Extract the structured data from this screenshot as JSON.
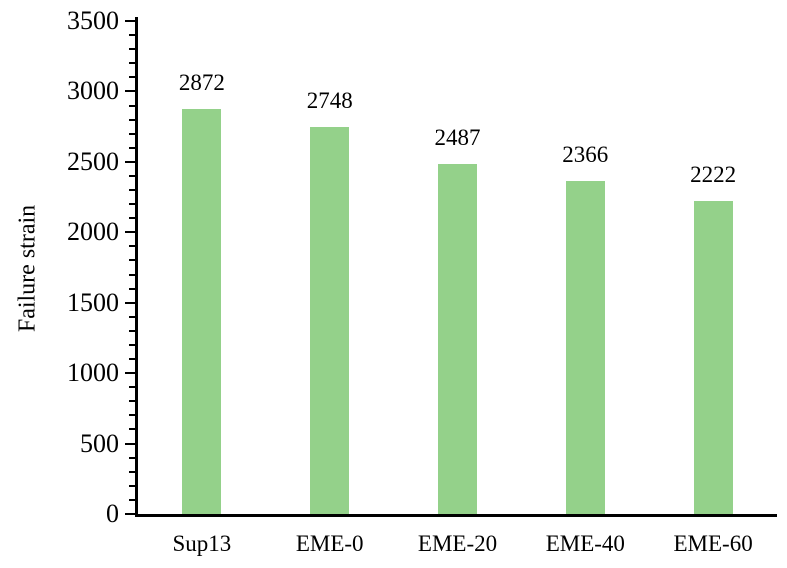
{
  "chart_data": {
    "type": "bar",
    "title": "",
    "xlabel": "",
    "ylabel": "Failure strain",
    "categories": [
      "Sup13",
      "EME-0",
      "EME-20",
      "EME-40",
      "EME-60"
    ],
    "values": [
      2872,
      2748,
      2487,
      2366,
      2222
    ],
    "value_labels": [
      "2872",
      "2748",
      "2487",
      "2366",
      "2222"
    ],
    "ylim": [
      0,
      3500
    ],
    "ytick_step": 500,
    "minor_tick_step": 100,
    "ytick_labels": [
      "0",
      "500",
      "1000",
      "1500",
      "2000",
      "2500",
      "3000",
      "3500"
    ],
    "grid": false,
    "legend_position": "none",
    "bar_color": "#94d18a",
    "axis_color": "#000000",
    "text_color": "#000000",
    "background_color": "#ffffff"
  }
}
